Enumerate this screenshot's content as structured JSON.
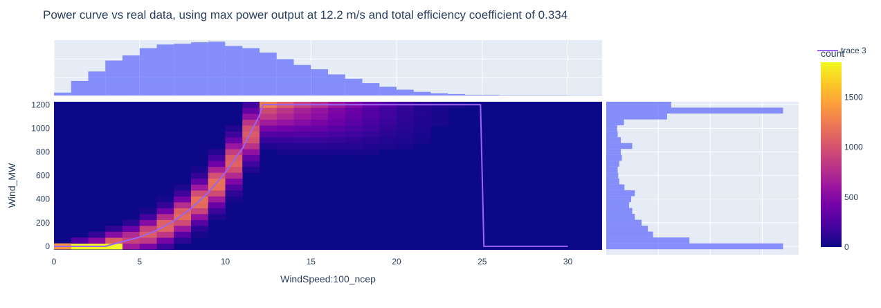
{
  "chart_data": {
    "type": "heatmap",
    "title": "Power curve vs real data, using max power output at 12.2 m/s and total efficiency coefficient of 0.334",
    "xlabel": "WindSpeed:100_ncep",
    "ylabel": "Wind_MW",
    "xlim": [
      0,
      32
    ],
    "ylim": [
      -30,
      1225
    ],
    "x_ticks": [
      0,
      5,
      10,
      15,
      20,
      25,
      30
    ],
    "y_ticks": [
      0,
      200,
      400,
      600,
      800,
      1000,
      1200
    ],
    "heatmap_bins": {
      "x_start": 0,
      "x_size": 1,
      "x_count": 32,
      "y_start": -25,
      "y_size": 50,
      "y_count": 25
    },
    "colorscale": [
      "#0d0887",
      "#46039f",
      "#7201a8",
      "#9c179e",
      "#bd3786",
      "#d8576b",
      "#ed7953",
      "#fb9f3a",
      "#fdca26",
      "#f0f921"
    ],
    "colorbar": {
      "title": "count",
      "range": [
        0,
        1850
      ],
      "ticks": [
        0,
        500,
        1000,
        1500
      ]
    },
    "marginal_x": {
      "type": "histogram",
      "bin_start": 0,
      "bin_size": 1,
      "counts": [
        4,
        20,
        33,
        48,
        55,
        65,
        70,
        71,
        73,
        74,
        68,
        65,
        59,
        50,
        42,
        36,
        29,
        23,
        17,
        12,
        8,
        5,
        3,
        2,
        1,
        1,
        0.5,
        0.5,
        0.5,
        0.5,
        0.3,
        0.3
      ]
    },
    "marginal_y": {
      "type": "histogram",
      "bin_start": -25,
      "bin_size": 50,
      "counts": [
        340,
        160,
        90,
        80,
        68,
        55,
        50,
        44,
        48,
        55,
        35,
        25,
        23,
        22,
        25,
        30,
        28,
        50,
        28,
        22,
        21,
        34,
        117,
        340,
        125
      ]
    },
    "series": [
      {
        "name": "trace 3",
        "type": "line",
        "color": "#9d63f5",
        "x": [
          0,
          3,
          4,
          5,
          6,
          7,
          8,
          9,
          10,
          11,
          12,
          12.2,
          12.5,
          15,
          20,
          24.9,
          25.1,
          30
        ],
        "y": [
          0,
          0,
          40,
          78,
          135,
          215,
          320,
          455,
          625,
          830,
          1110,
          1200,
          1200,
          1200,
          1200,
          1200,
          0,
          0
        ]
      }
    ],
    "legend_position": "top-right",
    "grid": true
  }
}
